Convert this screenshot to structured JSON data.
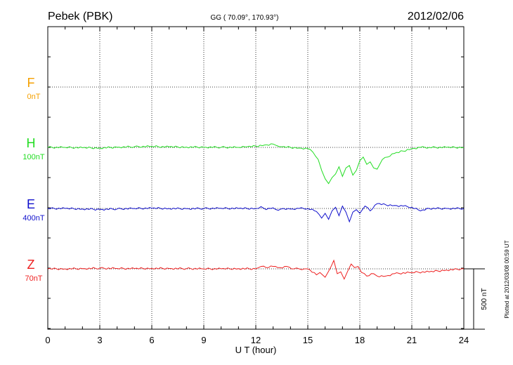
{
  "header": {
    "station": "Pebek (PBK)",
    "coords": "GG ( 70.09°, 170.93°)",
    "date": "2012/02/06"
  },
  "chart_data": {
    "type": "line",
    "xlabel": "U T (hour)",
    "xlim": [
      0,
      24
    ],
    "xticks": [
      "0",
      "3",
      "6",
      "9",
      "12",
      "15",
      "18",
      "21",
      "24"
    ],
    "scale_label": "500 nT",
    "plotted_note": "Plotted at 2012/03/08 00:59 UT",
    "grid": true,
    "series": [
      {
        "name": "F",
        "offset": "0nT",
        "color": "#f5a000",
        "baseline_nT": 0,
        "x": [],
        "y": []
      },
      {
        "name": "H",
        "offset": "100nT",
        "color": "#22dd22",
        "x": [
          0,
          1,
          2,
          3,
          4,
          5,
          6,
          7,
          8,
          9,
          10,
          11,
          11.5,
          12,
          12.5,
          13,
          13.2,
          13.5,
          14,
          14.5,
          15,
          15.3,
          15.6,
          15.8,
          16,
          16.2,
          16.4,
          16.6,
          16.8,
          17,
          17.2,
          17.4,
          17.6,
          17.8,
          18,
          18.2,
          18.4,
          18.6,
          18.8,
          19,
          19.3,
          19.6,
          20,
          20.5,
          21,
          21.5,
          22,
          23,
          24
        ],
        "y": [
          0,
          0,
          -3,
          -5,
          2,
          5,
          8,
          4,
          3,
          2,
          1,
          0,
          5,
          10,
          20,
          28,
          15,
          5,
          0,
          -5,
          -10,
          -40,
          -100,
          -190,
          -260,
          -300,
          -250,
          -220,
          -160,
          -240,
          -170,
          -150,
          -230,
          -190,
          -110,
          -80,
          -140,
          -120,
          -170,
          -180,
          -100,
          -80,
          -50,
          -30,
          -10,
          0,
          0,
          0,
          0
        ]
      },
      {
        "name": "E",
        "offset": "400nT",
        "color": "#1010cc",
        "x": [
          0,
          1,
          2,
          3,
          4,
          5,
          6,
          7,
          8,
          9,
          10,
          11,
          12,
          12.3,
          12.6,
          13,
          13.3,
          13.6,
          14,
          14.5,
          15,
          15.5,
          15.8,
          16,
          16.2,
          16.4,
          16.6,
          16.8,
          17,
          17.2,
          17.4,
          17.6,
          17.8,
          18,
          18.3,
          18.6,
          19,
          19.5,
          20,
          20.5,
          21,
          21.5,
          22,
          23,
          24
        ],
        "y": [
          0,
          0,
          -4,
          -8,
          -4,
          0,
          2,
          0,
          -2,
          0,
          1,
          0,
          0,
          15,
          -10,
          5,
          -15,
          0,
          -5,
          0,
          0,
          -25,
          -80,
          -40,
          -90,
          -20,
          10,
          -60,
          20,
          -30,
          -110,
          -30,
          -10,
          -40,
          20,
          -20,
          40,
          30,
          25,
          20,
          10,
          -20,
          0,
          0,
          0
        ]
      },
      {
        "name": "Z",
        "offset": "70nT",
        "color": "#ee2020",
        "x": [
          0,
          1,
          2,
          3,
          4,
          5,
          6,
          7,
          8,
          9,
          10,
          11,
          12,
          12.3,
          12.6,
          13,
          13.4,
          13.8,
          14.2,
          14.8,
          15,
          15.5,
          15.7,
          16,
          16.2,
          16.5,
          16.7,
          16.9,
          17.1,
          17.3,
          17.5,
          17.7,
          17.9,
          18.1,
          18.4,
          18.8,
          19,
          19.5,
          20,
          21,
          22,
          23,
          24
        ],
        "y": [
          0,
          0,
          2,
          5,
          3,
          2,
          4,
          3,
          2,
          0,
          0,
          2,
          0,
          20,
          10,
          20,
          10,
          20,
          0,
          0,
          0,
          -50,
          -30,
          -70,
          -20,
          70,
          -40,
          -25,
          -85,
          -20,
          40,
          10,
          20,
          -30,
          -60,
          -40,
          -60,
          -60,
          -40,
          -30,
          -25,
          -10,
          0
        ]
      }
    ]
  }
}
